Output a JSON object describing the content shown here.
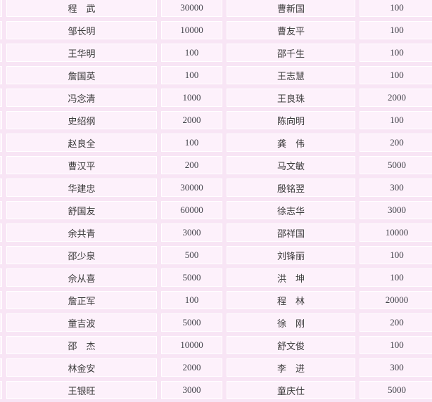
{
  "theme": {
    "page_background": "#f8e5f5",
    "cell_background": "#fdf1fb",
    "cell_border": "#ffffff",
    "name_color": "#3a3a3a",
    "amount_color": "#44444c"
  },
  "table": {
    "description": "donor-name / amount list, two column pairs, cropped at left and right edges",
    "columns": [
      "donor-name",
      "amount",
      "donor-name",
      "amount"
    ],
    "rows": [
      {
        "left_name": "程　武",
        "left_amount": "30000",
        "right_name": "曹新国",
        "right_amount": "100"
      },
      {
        "left_name": "邹长明",
        "left_amount": "10000",
        "right_name": "曹友平",
        "right_amount": "100"
      },
      {
        "left_name": "王华明",
        "left_amount": "100",
        "right_name": "邵千生",
        "right_amount": "100"
      },
      {
        "left_name": "詹国英",
        "left_amount": "100",
        "right_name": "王志慧",
        "right_amount": "100"
      },
      {
        "left_name": "冯念清",
        "left_amount": "1000",
        "right_name": "王良珠",
        "right_amount": "2000"
      },
      {
        "left_name": "史绍纲",
        "left_amount": "2000",
        "right_name": "陈向明",
        "right_amount": "100"
      },
      {
        "left_name": "赵良全",
        "left_amount": "100",
        "right_name": "龚　伟",
        "right_amount": "200"
      },
      {
        "left_name": "曹汉平",
        "left_amount": "200",
        "right_name": "马文敏",
        "right_amount": "5000"
      },
      {
        "left_name": "华建忠",
        "left_amount": "30000",
        "right_name": "殷铭翌",
        "right_amount": "300"
      },
      {
        "left_name": "舒国友",
        "left_amount": "60000",
        "right_name": "徐志华",
        "right_amount": "3000"
      },
      {
        "left_name": "余共青",
        "left_amount": "3000",
        "right_name": "邵祥国",
        "right_amount": "10000"
      },
      {
        "left_name": "邵少泉",
        "left_amount": "500",
        "right_name": "刘锋丽",
        "right_amount": "100"
      },
      {
        "left_name": "佘从喜",
        "left_amount": "5000",
        "right_name": "洪　坤",
        "right_amount": "100"
      },
      {
        "left_name": "詹正军",
        "left_amount": "100",
        "right_name": "程　林",
        "right_amount": "20000"
      },
      {
        "left_name": "童吉波",
        "left_amount": "5000",
        "right_name": "徐　刚",
        "right_amount": "200"
      },
      {
        "left_name": "邵　杰",
        "left_amount": "10000",
        "right_name": "舒文俊",
        "right_amount": "100"
      },
      {
        "left_name": "林金安",
        "left_amount": "2000",
        "right_name": "李　进",
        "right_amount": "300"
      },
      {
        "left_name": "王银旺",
        "left_amount": "3000",
        "right_name": "童庆仕",
        "right_amount": "5000"
      }
    ]
  }
}
